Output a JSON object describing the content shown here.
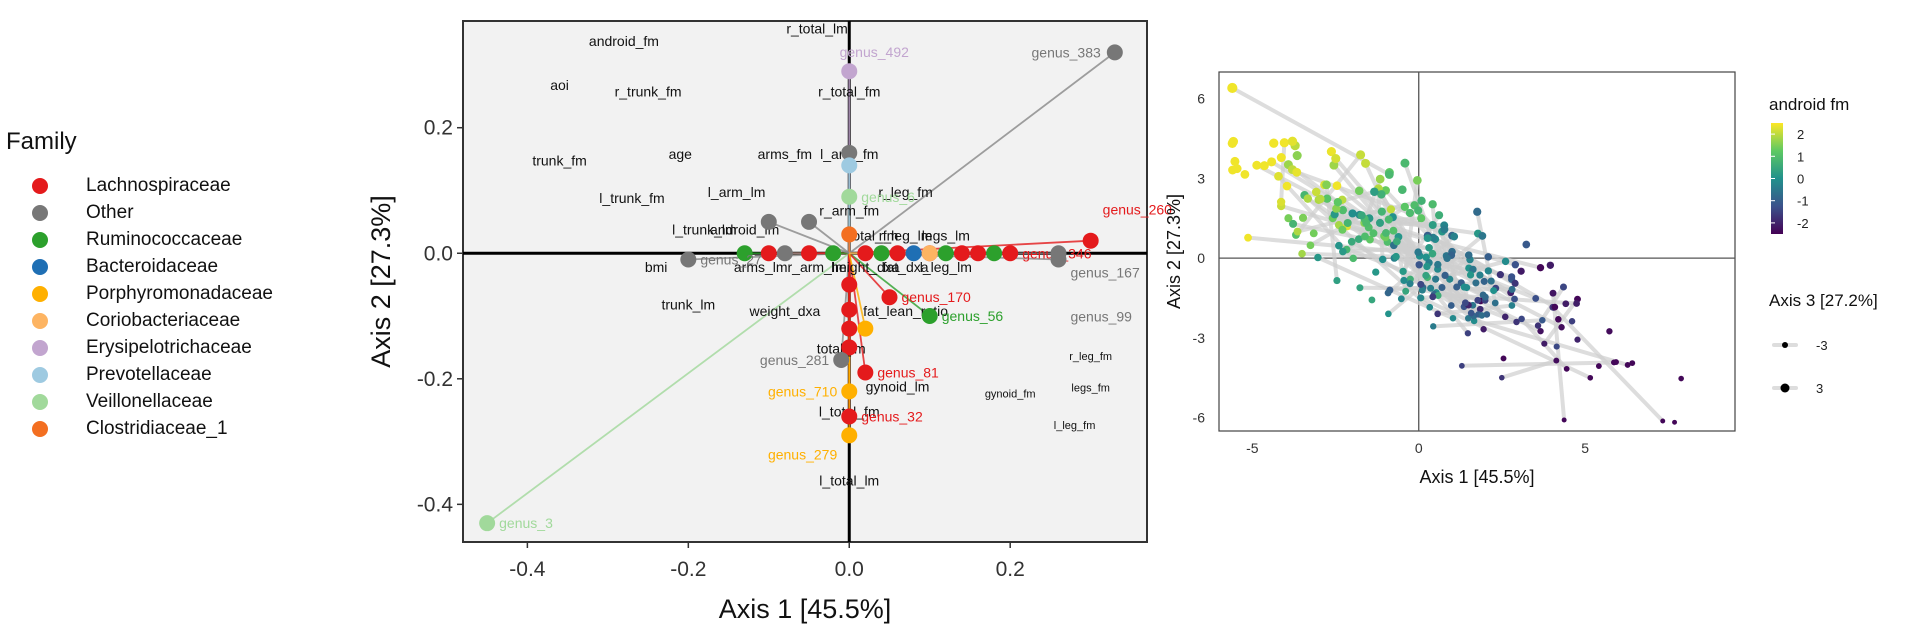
{
  "legend": {
    "title": "Family",
    "items": [
      {
        "label": "Lachnospiraceae",
        "color": "#e41a1c"
      },
      {
        "label": "Other",
        "color": "#777777"
      },
      {
        "label": "Ruminococcaceae",
        "color": "#2ca02c"
      },
      {
        "label": "Bacteroidaceae",
        "color": "#1f6fb4"
      },
      {
        "label": "Porphyromonadaceae",
        "color": "#ffb000"
      },
      {
        "label": "Coriobacteriaceae",
        "color": "#fdb462"
      },
      {
        "label": "Erysipelotrichaceae",
        "color": "#c2a5cf"
      },
      {
        "label": "Prevotellaceae",
        "color": "#9ecae1"
      },
      {
        "label": "Veillonellaceae",
        "color": "#a1d99b"
      },
      {
        "label": "Clostridiaceae_1",
        "color": "#f36f21"
      }
    ]
  },
  "chart_data": [
    {
      "type": "scatter",
      "subtype": "biplot",
      "xlabel": "Axis 1 [45.5%]",
      "ylabel": "Axis 2 [27.3%]",
      "xlim": [
        -0.48,
        0.37
      ],
      "ylim": [
        -0.46,
        0.37
      ],
      "xticks": [
        -0.4,
        -0.2,
        0.0,
        0.2
      ],
      "yticks": [
        -0.4,
        -0.2,
        0.0,
        0.2
      ],
      "xtick_labels": [
        "-0.4",
        "-0.2",
        "0.0",
        "0.2"
      ],
      "ytick_labels": [
        "-0.4",
        "-0.2",
        "0.0",
        "0.2"
      ],
      "taxa_points": [
        {
          "label": "genus_383",
          "x": 0.33,
          "y": 0.32,
          "family": "Other"
        },
        {
          "label": "genus_492",
          "x": 0.0,
          "y": 0.29,
          "family": "Erysipelotrichaceae"
        },
        {
          "label": "genus_260",
          "x": 0.3,
          "y": 0.02,
          "family": "Lachnospiraceae"
        },
        {
          "label": "genus_346",
          "x": 0.2,
          "y": 0.0,
          "family": "Lachnospiraceae"
        },
        {
          "label": "genus_167",
          "x": 0.26,
          "y": 0.0,
          "family": "Other"
        },
        {
          "label": "genus_56",
          "x": 0.1,
          "y": -0.1,
          "family": "Ruminococcaceae"
        },
        {
          "label": "genus_170",
          "x": 0.05,
          "y": -0.07,
          "family": "Lachnospiraceae"
        },
        {
          "label": "genus_81",
          "x": 0.02,
          "y": -0.19,
          "family": "Lachnospiraceae"
        },
        {
          "label": "genus_32",
          "x": 0.0,
          "y": -0.26,
          "family": "Lachnospiraceae"
        },
        {
          "label": "genus_710",
          "x": 0.0,
          "y": -0.22,
          "family": "Porphyromonadaceae"
        },
        {
          "label": "genus_279",
          "x": 0.0,
          "y": -0.29,
          "family": "Porphyromonadaceae"
        },
        {
          "label": "genus_281",
          "x": -0.01,
          "y": -0.17,
          "family": "Other"
        },
        {
          "label": "genus_3",
          "x": -0.45,
          "y": -0.43,
          "family": "Veillonellaceae"
        },
        {
          "label": "genus_99",
          "x": 0.26,
          "y": -0.01,
          "family": "Other"
        },
        {
          "label": "genus_27",
          "x": -0.2,
          "y": -0.01,
          "family": "Other"
        },
        {
          "label": "genus_6",
          "x": 0.0,
          "y": 0.09,
          "family": "Veillonellaceae"
        }
      ],
      "unlabeled_points": [
        {
          "x": -0.13,
          "y": 0.0,
          "family": "Ruminococcaceae"
        },
        {
          "x": -0.1,
          "y": 0.0,
          "family": "Lachnospiraceae"
        },
        {
          "x": -0.08,
          "y": 0.0,
          "family": "Other"
        },
        {
          "x": -0.05,
          "y": 0.0,
          "family": "Lachnospiraceae"
        },
        {
          "x": -0.02,
          "y": 0.0,
          "family": "Ruminococcaceae"
        },
        {
          "x": 0.02,
          "y": 0.0,
          "family": "Lachnospiraceae"
        },
        {
          "x": 0.04,
          "y": 0.0,
          "family": "Ruminococcaceae"
        },
        {
          "x": 0.06,
          "y": 0.0,
          "family": "Lachnospiraceae"
        },
        {
          "x": 0.08,
          "y": 0.0,
          "family": "Bacteroidaceae"
        },
        {
          "x": 0.1,
          "y": 0.0,
          "family": "Lachnospiraceae"
        },
        {
          "x": 0.12,
          "y": 0.0,
          "family": "Ruminococcaceae"
        },
        {
          "x": 0.14,
          "y": 0.0,
          "family": "Lachnospiraceae"
        },
        {
          "x": 0.16,
          "y": 0.0,
          "family": "Lachnospiraceae"
        },
        {
          "x": 0.18,
          "y": 0.0,
          "family": "Ruminococcaceae"
        },
        {
          "x": 0.0,
          "y": 0.16,
          "family": "Other"
        },
        {
          "x": 0.0,
          "y": 0.14,
          "family": "Prevotellaceae"
        },
        {
          "x": 0.0,
          "y": 0.03,
          "family": "Clostridiaceae_1"
        },
        {
          "x": 0.0,
          "y": -0.05,
          "family": "Lachnospiraceae"
        },
        {
          "x": 0.0,
          "y": -0.09,
          "family": "Lachnospiraceae"
        },
        {
          "x": 0.0,
          "y": -0.12,
          "family": "Lachnospiraceae"
        },
        {
          "x": 0.0,
          "y": -0.15,
          "family": "Lachnospiraceae"
        },
        {
          "x": 0.02,
          "y": -0.12,
          "family": "Porphyromonadaceae"
        },
        {
          "x": -0.05,
          "y": 0.05,
          "family": "Other"
        },
        {
          "x": -0.1,
          "y": 0.05,
          "family": "Other"
        },
        {
          "x": 0.1,
          "y": 0.0,
          "family": "Coriobacteriaceae"
        }
      ],
      "variable_labels": [
        {
          "label": "android_fm",
          "x": -0.28,
          "y": 0.33
        },
        {
          "label": "aoi",
          "x": -0.36,
          "y": 0.26
        },
        {
          "label": "r_trunk_fm",
          "x": -0.25,
          "y": 0.25
        },
        {
          "label": "trunk_fm",
          "x": -0.36,
          "y": 0.14
        },
        {
          "label": "age",
          "x": -0.21,
          "y": 0.15
        },
        {
          "label": "l_trunk_fm",
          "x": -0.27,
          "y": 0.08
        },
        {
          "label": "l_trunk_lm",
          "x": -0.18,
          "y": 0.03
        },
        {
          "label": "android_lm",
          "x": -0.13,
          "y": 0.03
        },
        {
          "label": "bmi",
          "x": -0.24,
          "y": -0.03
        },
        {
          "label": "arms_lm",
          "x": -0.11,
          "y": -0.03
        },
        {
          "label": "r_arm_lm",
          "x": -0.04,
          "y": -0.03
        },
        {
          "label": "trunk_lm",
          "x": -0.2,
          "y": -0.09
        },
        {
          "label": "weight_dxa",
          "x": -0.08,
          "y": -0.1
        },
        {
          "label": "fat_lean_ratio",
          "x": 0.07,
          "y": -0.1
        },
        {
          "label": "total_lm",
          "x": -0.01,
          "y": -0.16
        },
        {
          "label": "r_total_lm",
          "x": -0.04,
          "y": 0.35
        },
        {
          "label": "r_total_fm",
          "x": 0.0,
          "y": 0.25
        },
        {
          "label": "arms_fm",
          "x": -0.08,
          "y": 0.15
        },
        {
          "label": "l_arm_fm",
          "x": 0.0,
          "y": 0.15
        },
        {
          "label": "l_arm_lm",
          "x": -0.14,
          "y": 0.09
        },
        {
          "label": "r_arm_fm",
          "x": 0.0,
          "y": 0.06
        },
        {
          "label": "r_leg_fm",
          "x": 0.07,
          "y": 0.09
        },
        {
          "label": "total_fm",
          "x": 0.03,
          "y": 0.02
        },
        {
          "label": "r_leg_lm",
          "x": 0.07,
          "y": 0.02
        },
        {
          "label": "legs_lm",
          "x": 0.12,
          "y": 0.02
        },
        {
          "label": "fat_dxa",
          "x": 0.07,
          "y": -0.03
        },
        {
          "label": "height_dxa",
          "x": 0.02,
          "y": -0.03
        },
        {
          "label": "l_leg_lm",
          "x": 0.12,
          "y": -0.03
        },
        {
          "label": "gynoid_lm",
          "x": 0.06,
          "y": -0.22
        },
        {
          "label": "gynoid_fm",
          "x": 0.2,
          "y": -0.23
        },
        {
          "label": "r_leg_fm",
          "x": 0.3,
          "y": -0.17
        },
        {
          "label": "legs_fm",
          "x": 0.3,
          "y": -0.22
        },
        {
          "label": "l_leg_fm",
          "x": 0.28,
          "y": -0.28
        },
        {
          "label": "l_total_fm",
          "x": 0.0,
          "y": -0.26
        },
        {
          "label": "l_total_lm",
          "x": 0.0,
          "y": -0.37
        }
      ]
    },
    {
      "type": "scatter",
      "subtype": "paired-ordination",
      "xlabel": "Axis 1 [45.5%]",
      "ylabel": "Axis 2 [27.3%]",
      "xlim": [
        -6,
        9.5
      ],
      "ylim": [
        -6.5,
        7
      ],
      "xticks": [
        -5,
        0,
        5
      ],
      "yticks": [
        -6,
        -3,
        0,
        3,
        6
      ],
      "xtick_labels": [
        "-5",
        "0",
        "5"
      ],
      "ytick_labels": [
        "-6",
        "-3",
        "0",
        "3",
        "6"
      ],
      "colorbar": {
        "title": "android fm",
        "ticks": [
          "2",
          "1",
          "0",
          "-1",
          "-2"
        ],
        "range": [
          -2.5,
          2.5
        ]
      },
      "size_legend": {
        "title": "Axis 3 [27.2%]",
        "labels": [
          "-3",
          "3"
        ]
      }
    }
  ]
}
